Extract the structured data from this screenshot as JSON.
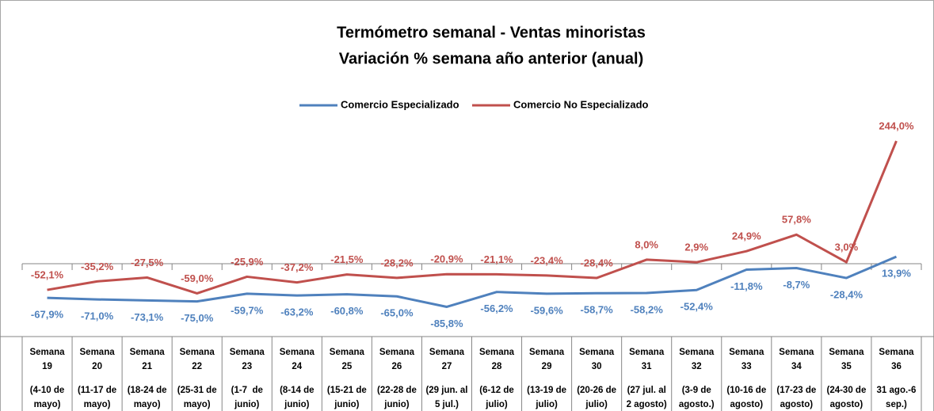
{
  "chart_data": {
    "type": "line",
    "title": "Termómetro semanal - Ventas minoristas",
    "subtitle": "Variación % semana año anterior (anual)",
    "categories": [
      [
        "Semana",
        "19",
        "(4-10 de",
        "mayo)"
      ],
      [
        "Semana",
        "20",
        "(11-17 de",
        "mayo)"
      ],
      [
        "Semana",
        "21",
        "(18-24 de",
        "mayo)"
      ],
      [
        "Semana",
        "22",
        "(25-31 de",
        "mayo)"
      ],
      [
        "Semana",
        "23",
        "(1-7  de",
        "junio)"
      ],
      [
        "Semana",
        "24",
        "(8-14 de",
        "junio)"
      ],
      [
        "Semana",
        "25",
        "(15-21 de",
        "junio)"
      ],
      [
        "Semana",
        "26",
        "(22-28 de",
        "junio)"
      ],
      [
        "Semana",
        "27",
        "(29 jun. al",
        "5 jul.)"
      ],
      [
        "Semana",
        "28",
        "(6-12 de",
        "julio)"
      ],
      [
        "Semana",
        "29",
        "(13-19 de",
        "julio)"
      ],
      [
        "Semana",
        "30",
        "(20-26 de",
        "julio)"
      ],
      [
        "Semana",
        "31",
        "(27 jul. al",
        "2 agosto)"
      ],
      [
        "Semana",
        "32",
        "(3-9 de",
        "agosto.)"
      ],
      [
        "Semana",
        "33",
        "(10-16 de",
        "agosto)"
      ],
      [
        "Semana",
        "34",
        "(17-23 de",
        "agosto)"
      ],
      [
        "Semana",
        "35",
        "(24-30 de",
        "agosto)"
      ],
      [
        "Semana",
        "36",
        "31 ago.-6",
        "sep.)"
      ]
    ],
    "series": [
      {
        "name": "Comercio Especializado",
        "color": "#4f81bd",
        "label_position": "below",
        "values": [
          -67.9,
          -71.0,
          -73.1,
          -75.0,
          -59.7,
          -63.2,
          -60.8,
          -65.0,
          -85.8,
          -56.2,
          -59.6,
          -58.7,
          -58.2,
          -52.4,
          -11.8,
          -8.7,
          -28.4,
          13.9
        ],
        "value_labels": [
          "-67,9%",
          "-71,0%",
          "-73,1%",
          "-75,0%",
          "-59,7%",
          "-63,2%",
          "-60,8%",
          "-65,0%",
          "-85,8%",
          "-56,2%",
          "-59,6%",
          "-58,7%",
          "-58,2%",
          "-52,4%",
          "-11,8%",
          "-8,7%",
          "-28,4%",
          "13,9%"
        ]
      },
      {
        "name": "Comercio No Especializado",
        "color": "#c0504d",
        "label_position": "above",
        "values": [
          -52.1,
          -35.2,
          -27.5,
          -59.0,
          -25.9,
          -37.2,
          -21.5,
          -28.2,
          -20.9,
          -21.1,
          -23.4,
          -28.4,
          8.0,
          2.9,
          24.9,
          57.8,
          3.0,
          244.0
        ],
        "value_labels": [
          "-52,1%",
          "-35,2%",
          "-27,5%",
          "-59,0%",
          "-25,9%",
          "-37,2%",
          "-21,5%",
          "-28,2%",
          "-20,9%",
          "-21,1%",
          "-23,4%",
          "-28,4%",
          "8,0%",
          "2,9%",
          "24,9%",
          "57,8%",
          "3,0%",
          "244,0%"
        ]
      }
    ],
    "ylim": [
      -100,
      300
    ]
  }
}
